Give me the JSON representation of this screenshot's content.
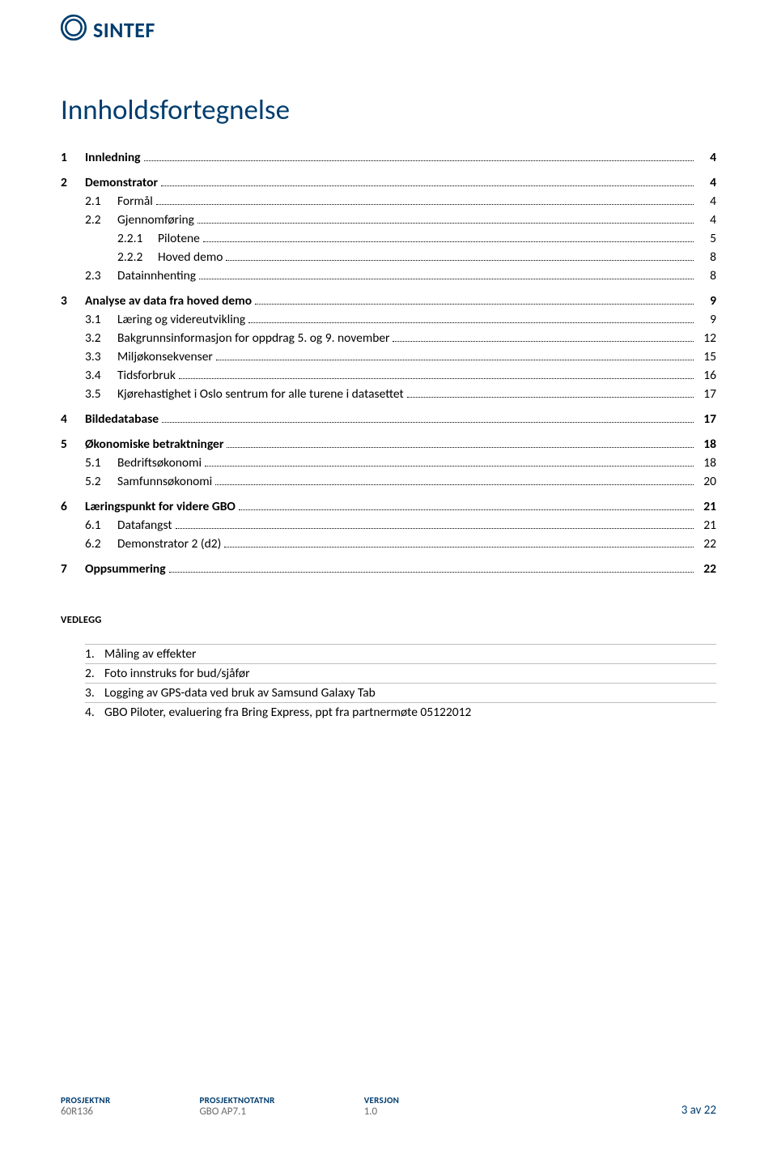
{
  "brand": {
    "name": "SINTEF",
    "color": "#003d6e"
  },
  "title": "Innholdsfortegnelse",
  "toc": [
    {
      "level": 0,
      "num": "1",
      "label": "Innledning",
      "page": "4"
    },
    {
      "level": 0,
      "num": "2",
      "label": "Demonstrator",
      "page": "4"
    },
    {
      "level": 1,
      "num": "2.1",
      "label": "Formål",
      "page": "4"
    },
    {
      "level": 1,
      "num": "2.2",
      "label": "Gjennomføring",
      "page": "4"
    },
    {
      "level": 2,
      "num": "2.2.1",
      "label": "Pilotene",
      "page": "5"
    },
    {
      "level": 2,
      "num": "2.2.2",
      "label": "Hoved demo",
      "page": "8"
    },
    {
      "level": 1,
      "num": "2.3",
      "label": "Datainnhenting",
      "page": "8"
    },
    {
      "level": 0,
      "num": "3",
      "label": "Analyse av data fra hoved demo",
      "page": "9"
    },
    {
      "level": 1,
      "num": "3.1",
      "label": "Læring og videreutvikling",
      "page": "9"
    },
    {
      "level": 1,
      "num": "3.2",
      "label": "Bakgrunnsinformasjon for oppdrag 5. og 9. november",
      "page": "12"
    },
    {
      "level": 1,
      "num": "3.3",
      "label": "Miljøkonsekvenser",
      "page": "15"
    },
    {
      "level": 1,
      "num": "3.4",
      "label": "Tidsforbruk",
      "page": "16"
    },
    {
      "level": 1,
      "num": "3.5",
      "label": "Kjørehastighet i Oslo sentrum for alle turene i datasettet",
      "page": "17"
    },
    {
      "level": 0,
      "num": "4",
      "label": "Bildedatabase",
      "page": "17"
    },
    {
      "level": 0,
      "num": "5",
      "label": "Økonomiske betraktninger",
      "page": "18"
    },
    {
      "level": 1,
      "num": "5.1",
      "label": "Bedriftsøkonomi",
      "page": "18"
    },
    {
      "level": 1,
      "num": "5.2",
      "label": "Samfunnsøkonomi",
      "page": "20"
    },
    {
      "level": 0,
      "num": "6",
      "label": "Læringspunkt for videre GBO",
      "page": "21"
    },
    {
      "level": 1,
      "num": "6.1",
      "label": "Datafangst",
      "page": "21"
    },
    {
      "level": 1,
      "num": "6.2",
      "label": "Demonstrator 2 (d2)",
      "page": "22"
    },
    {
      "level": 0,
      "num": "7",
      "label": "Oppsummering",
      "page": "22"
    }
  ],
  "attachments": {
    "heading": "VEDLEGG",
    "items": [
      {
        "num": "1.",
        "text": "Måling av effekter"
      },
      {
        "num": "2.",
        "text": "Foto innstruks for bud/sjåfør"
      },
      {
        "num": "3.",
        "text": "Logging av GPS-data ved bruk av Samsund Galaxy Tab"
      },
      {
        "num": "4.",
        "text": "GBO Piloter, evaluering fra Bring Express, ppt fra partnermøte 05122012"
      }
    ]
  },
  "footer": {
    "cols": [
      {
        "label": "PROSJEKTNR",
        "value": "60R136"
      },
      {
        "label": "PROSJEKTNOTATNR",
        "value": "GBO AP7.1"
      },
      {
        "label": "VERSJON",
        "value": "1.0"
      }
    ],
    "pagenum": "3 av 22"
  }
}
